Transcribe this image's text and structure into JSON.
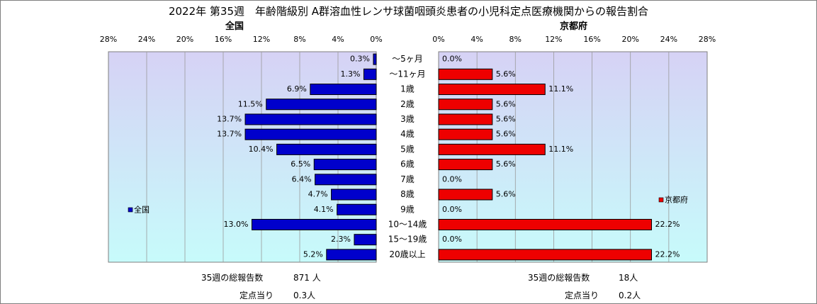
{
  "title": "2022年 第35週　年齢階級別 A群溶血性レンサ球菌咽頭炎患者の小児科定点医療機関からの報告割合",
  "colors": {
    "national_bar": "#0000cc",
    "kyoto_bar": "#ee0000",
    "plot_top": "#d6d2f5",
    "plot_bottom": "#c7fbfb"
  },
  "chart_data": [
    {
      "type": "bar",
      "orientation": "horizontal",
      "direction": "right-to-left",
      "title": "全国",
      "categories": [
        "～5ヶ月",
        "～11ヶ月",
        "1歳",
        "2歳",
        "3歳",
        "4歳",
        "5歳",
        "6歳",
        "7歳",
        "8歳",
        "9歳",
        "10～14歳",
        "15～19歳",
        "20歳以上"
      ],
      "series": [
        {
          "name": "全国",
          "values": [
            0.3,
            1.3,
            6.9,
            11.5,
            13.7,
            13.7,
            10.4,
            6.5,
            6.4,
            4.7,
            4.1,
            13.0,
            2.3,
            5.2
          ]
        }
      ],
      "value_labels": [
        "0.3%",
        "1.3%",
        "6.9%",
        "11.5%",
        "13.7%",
        "13.7%",
        "10.4%",
        "6.5%",
        "6.4%",
        "4.7%",
        "4.1%",
        "13.0%",
        "2.3%",
        "5.2%"
      ],
      "xlim": [
        0,
        28
      ],
      "ticks": [
        "28%",
        "24%",
        "20%",
        "16%",
        "12%",
        "8%",
        "4%",
        "0%"
      ],
      "legend": "left",
      "grid": true
    },
    {
      "type": "bar",
      "orientation": "horizontal",
      "direction": "left-to-right",
      "title": "京都府",
      "categories": [
        "～5ヶ月",
        "～11ヶ月",
        "1歳",
        "2歳",
        "3歳",
        "4歳",
        "5歳",
        "6歳",
        "7歳",
        "8歳",
        "9歳",
        "10～14歳",
        "15～19歳",
        "20歳以上"
      ],
      "series": [
        {
          "name": "京都府",
          "values": [
            0.0,
            5.6,
            11.1,
            5.6,
            5.6,
            5.6,
            11.1,
            5.6,
            0.0,
            5.6,
            0.0,
            22.2,
            0.0,
            22.2
          ]
        }
      ],
      "value_labels": [
        "0.0%",
        "5.6%",
        "11.1%",
        "5.6%",
        "5.6%",
        "5.6%",
        "11.1%",
        "5.6%",
        "0.0%",
        "5.6%",
        "0.0%",
        "22.2%",
        "0.0%",
        "22.2%"
      ],
      "xlim": [
        0,
        28
      ],
      "ticks": [
        "0%",
        "4%",
        "8%",
        "12%",
        "16%",
        "20%",
        "24%",
        "28%"
      ],
      "legend": "right",
      "grid": true
    }
  ],
  "footer": {
    "national": {
      "total_label": "35週の総報告数",
      "total_value": "871 人",
      "per_label": "定点当り",
      "per_value": "0.3人"
    },
    "kyoto": {
      "total_label": "35週の総報告数",
      "total_value": "18人",
      "per_label": "定点当り",
      "per_value": "0.2人"
    }
  }
}
